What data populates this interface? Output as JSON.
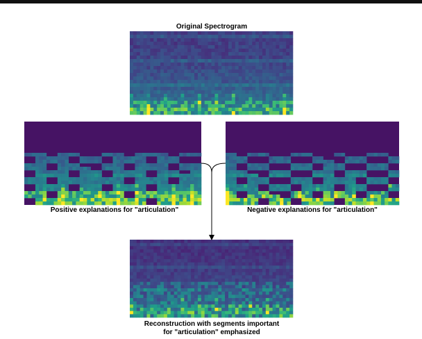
{
  "original": {
    "title": "Original Spectrogram"
  },
  "positive": {
    "caption": "Positive explanations for \"articulation\""
  },
  "negative": {
    "caption": "Negative explanations for \"articulation\""
  },
  "reconstruction": {
    "caption_lines": [
      "Reconstruction with segments important",
      "for \"articulation\" emphasized"
    ]
  }
}
